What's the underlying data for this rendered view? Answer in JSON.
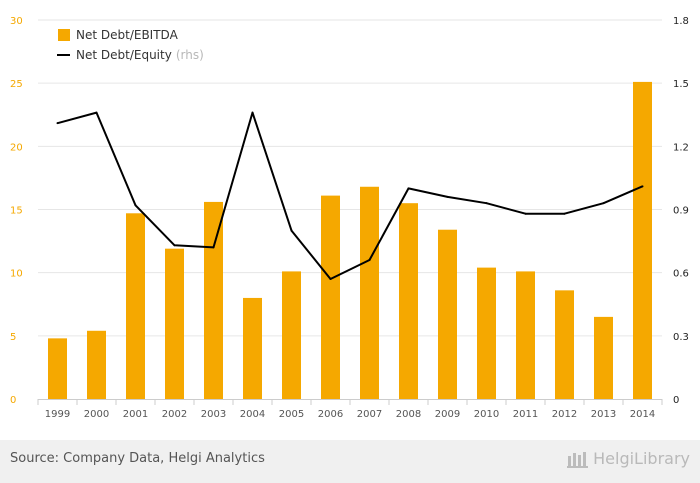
{
  "chart_data": {
    "type": "bar+line",
    "title": "",
    "categories": [
      "1999",
      "2000",
      "2001",
      "2002",
      "2003",
      "2004",
      "2005",
      "2006",
      "2007",
      "2008",
      "2009",
      "2010",
      "2011",
      "2012",
      "2013",
      "2014"
    ],
    "series": [
      {
        "name": "Net Debt/EBITDA",
        "type": "bar",
        "axis": "left",
        "color": "#f5a800",
        "values": [
          4.8,
          5.4,
          14.7,
          11.9,
          15.6,
          8.0,
          10.1,
          16.1,
          16.8,
          15.5,
          13.4,
          10.4,
          10.1,
          8.6,
          6.5,
          25.1
        ]
      },
      {
        "name": "Net Debt/Equity",
        "suffix": "(rhs)",
        "type": "line",
        "axis": "right",
        "color": "#000000",
        "values": [
          1.31,
          1.36,
          0.92,
          0.73,
          0.72,
          1.36,
          0.8,
          0.57,
          0.66,
          1.0,
          0.96,
          0.93,
          0.88,
          0.88,
          0.93,
          1.01
        ]
      }
    ],
    "y_left": {
      "min": 0,
      "max": 30,
      "ticks": [
        "0",
        "5",
        "10",
        "15",
        "20",
        "25",
        "30"
      ]
    },
    "y_right": {
      "min": 0,
      "max": 1.8,
      "ticks": [
        "0",
        "0.3",
        "0.6",
        "0.9",
        "1.2",
        "1.5",
        "1.8"
      ]
    },
    "grid": true,
    "legend_position": "top-left"
  },
  "footer": {
    "source": "Source: Company Data, Helgi Analytics",
    "brand": "HelgiLibrary"
  }
}
